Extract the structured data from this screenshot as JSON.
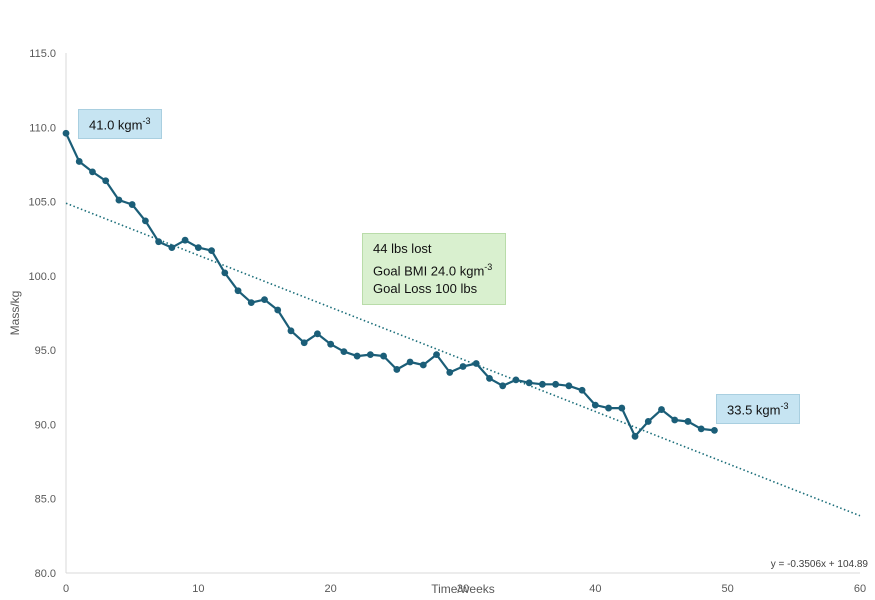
{
  "chart_data": {
    "type": "line",
    "xlabel": "Time/weeks",
    "ylabel": "Mass/kg",
    "xlim": [
      0,
      60
    ],
    "ylim": [
      80,
      115
    ],
    "x_ticks": [
      "0",
      "10",
      "20",
      "30",
      "40",
      "50",
      "60"
    ],
    "y_ticks": [
      "80.0",
      "85.0",
      "90.0",
      "95.0",
      "100.0",
      "105.0",
      "110.0",
      "115.0"
    ],
    "grid": false,
    "series": [
      {
        "color": "#1b5e78",
        "x": [
          0,
          1,
          2,
          3,
          4,
          5,
          6,
          7,
          8,
          9,
          10,
          11,
          12,
          13,
          14,
          15,
          16,
          17,
          18,
          19,
          20,
          21,
          22,
          23,
          24,
          25,
          26,
          27,
          28,
          29,
          30,
          31,
          32,
          33,
          34,
          35,
          36,
          37,
          38,
          39,
          40,
          41,
          42,
          43,
          44,
          45,
          46,
          47,
          48,
          49
        ],
        "y": [
          109.6,
          107.7,
          107.0,
          106.4,
          105.1,
          104.8,
          103.7,
          102.3,
          101.9,
          102.4,
          101.9,
          101.7,
          100.2,
          99.0,
          98.2,
          98.4,
          97.7,
          96.3,
          95.5,
          96.1,
          95.4,
          94.9,
          94.6,
          94.7,
          94.6,
          93.7,
          94.2,
          94.0,
          94.7,
          93.5,
          93.9,
          94.1,
          93.1,
          92.6,
          93.0,
          92.8,
          92.7,
          92.7,
          92.6,
          92.3,
          91.3,
          91.1,
          91.1,
          89.2,
          90.2,
          91.0,
          90.3,
          90.2,
          89.7,
          89.6
        ]
      }
    ],
    "trendline": {
      "slope": -0.3506,
      "intercept": 104.89,
      "equation": "y = -0.3506x + 104.89",
      "style": "dotted",
      "color": "#1b6e7a"
    },
    "annotations": {
      "start_bmi": {
        "value": "41.0 kgm",
        "sup": "-3"
      },
      "end_bmi": {
        "value": "33.5 kgm",
        "sup": "-3"
      },
      "summary_line1": "44 lbs lost",
      "summary_line2_text": "Goal BMI 24.0 kgm",
      "summary_line2_sup": "-3",
      "summary_line3": "Goal Loss 100 lbs"
    }
  }
}
